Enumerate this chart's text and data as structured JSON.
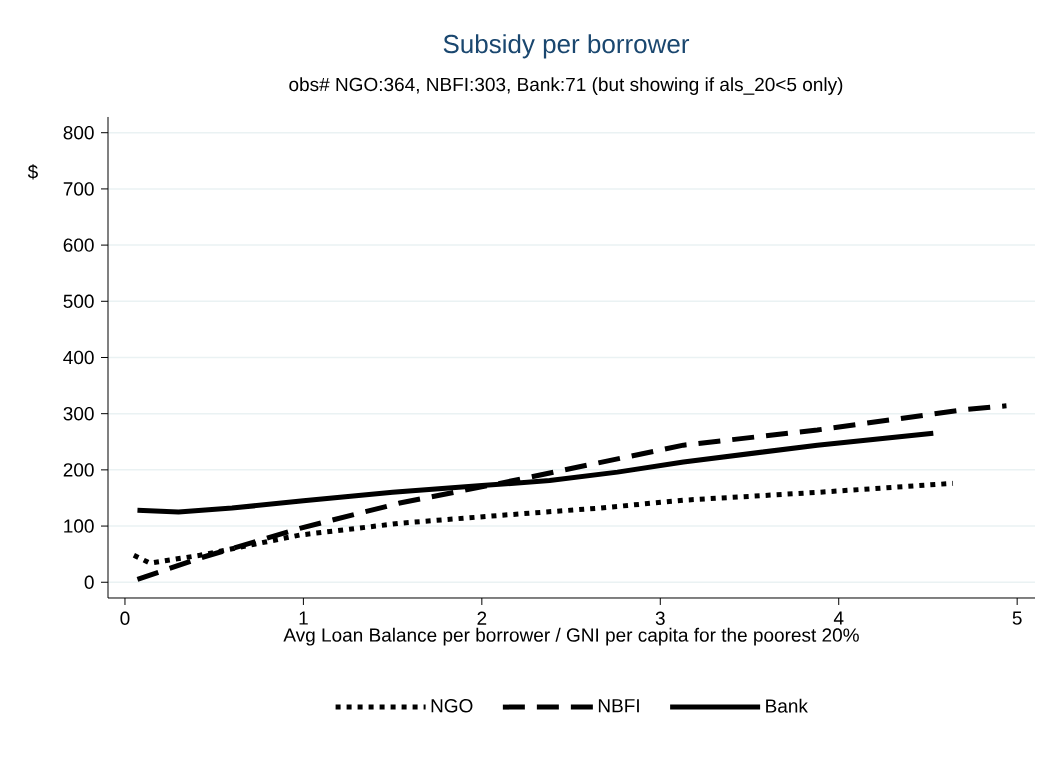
{
  "chart_data": {
    "type": "line",
    "title": "Subsidy per borrower",
    "subtitle": "obs# NGO:364, NBFI:303, Bank:71 (but showing if als_20<5 only)",
    "xlabel": "Avg Loan Balance per borrower / GNI per capita for the poorest 20%",
    "ylabel": "$",
    "xlim": [
      -0.095,
      5.1
    ],
    "ylim": [
      -28,
      828
    ],
    "xticks": [
      0,
      1,
      2,
      3,
      4,
      5
    ],
    "yticks": [
      0,
      100,
      200,
      300,
      400,
      500,
      600,
      700,
      800
    ],
    "grid": "y",
    "legend": "bottom",
    "series": [
      {
        "name": "NGO",
        "color": "#000000",
        "line_style": "dotted",
        "x": [
          0.05,
          0.14,
          0.42,
          0.98,
          1.54,
          2.1,
          2.66,
          3.13,
          3.88,
          4.64
        ],
        "values": [
          48,
          34,
          48,
          84,
          105,
          119,
          132,
          146,
          160,
          176
        ]
      },
      {
        "name": "NBFI",
        "color": "#000000",
        "line_style": "dashed",
        "x": [
          0.07,
          0.42,
          0.98,
          1.54,
          2.1,
          2.54,
          3.13,
          3.88,
          4.7,
          4.94
        ],
        "values": [
          5,
          43,
          96,
          141,
          176,
          205,
          244,
          271,
          307,
          314
        ]
      },
      {
        "name": "Bank",
        "color": "#000000",
        "line_style": "solid",
        "x": [
          0.07,
          0.3,
          0.6,
          1.0,
          1.5,
          2.0,
          2.38,
          2.76,
          3.13,
          3.88,
          4.53
        ],
        "values": [
          128,
          125,
          132,
          145,
          160,
          172,
          181,
          196,
          214,
          244,
          265
        ]
      }
    ]
  }
}
